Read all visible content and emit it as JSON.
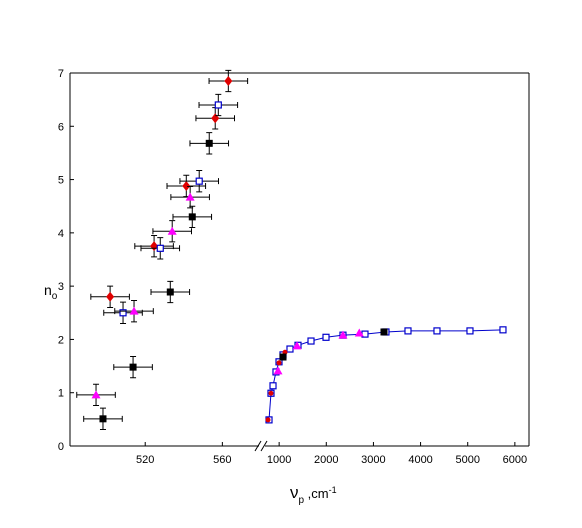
{
  "chart_data": [
    {
      "type": "scatter",
      "xlim": [
        481,
        579
      ],
      "ylim": [
        0,
        7
      ],
      "xticks": [
        520,
        560
      ],
      "yticks": [
        0,
        1,
        2,
        3,
        4,
        5,
        6,
        7
      ],
      "ylabel": {
        "main": "n",
        "sub": "o"
      },
      "series": [
        {
          "color": "#000000",
          "marker": "square",
          "xerr": 10,
          "yerr": 0.2,
          "x": [
            498.1,
            513.7,
            533,
            544.4,
            553.2
          ],
          "values": [
            0.51,
            1.48,
            2.89,
            4.3,
            5.68
          ]
        },
        {
          "color": "#e00000",
          "marker": "diamond",
          "xerr": 10,
          "yerr": 0.2,
          "x": [
            501.8,
            524.6,
            541.3,
            556.3,
            563.1
          ],
          "values": [
            2.8,
            3.75,
            4.88,
            6.15,
            6.85
          ]
        },
        {
          "color": "#0000cc",
          "marker": "open-square",
          "xerr": 10,
          "yerr": 0.2,
          "x": [
            508.5,
            527.8,
            548,
            557.9
          ],
          "values": [
            2.5,
            3.71,
            4.97,
            6.4
          ]
        },
        {
          "color": "#ff00ff",
          "marker": "triangle",
          "xerr": 10,
          "yerr": 0.2,
          "x": [
            494.5,
            514.2,
            534,
            543.3
          ],
          "values": [
            0.96,
            2.53,
            4.03,
            4.67
          ]
        }
      ]
    },
    {
      "type": "line",
      "xlim": [
        700,
        6300
      ],
      "ylim": [
        0,
        7
      ],
      "xticks": [
        1000,
        2000,
        3000,
        4000,
        5000,
        6000
      ],
      "xlabel": {
        "main": "ν",
        "sub": "p",
        "unit": " ,cm",
        "sup": "-1"
      },
      "series": [
        {
          "color": "#0000cc",
          "marker": "open-square",
          "line": true,
          "x": [
            785,
            827,
            870,
            933,
            997,
            1082,
            1230,
            1400,
            1676,
            1994,
            2354,
            2821,
            3266,
            3733,
            4348,
            5048,
            5748
          ],
          "values": [
            0.49,
            0.99,
            1.13,
            1.39,
            1.58,
            1.71,
            1.82,
            1.89,
            1.97,
            2.04,
            2.08,
            2.1,
            2.14,
            2.16,
            2.16,
            2.16,
            2.18
          ]
        },
        {
          "color": "#e00000",
          "marker": "circle",
          "line": false,
          "x": [
            764,
            827,
            997,
            1124
          ],
          "values": [
            0.49,
            0.99,
            1.56,
            1.76
          ]
        },
        {
          "color": "#ff00ff",
          "marker": "triangle",
          "line": false,
          "x": [
            976,
            1379,
            2354,
            2700
          ],
          "values": [
            1.41,
            1.88,
            2.08,
            2.12
          ]
        },
        {
          "color": "#000000",
          "marker": "square",
          "line": false,
          "x": [
            1082,
            3224
          ],
          "values": [
            1.67,
            2.14
          ]
        }
      ]
    }
  ]
}
